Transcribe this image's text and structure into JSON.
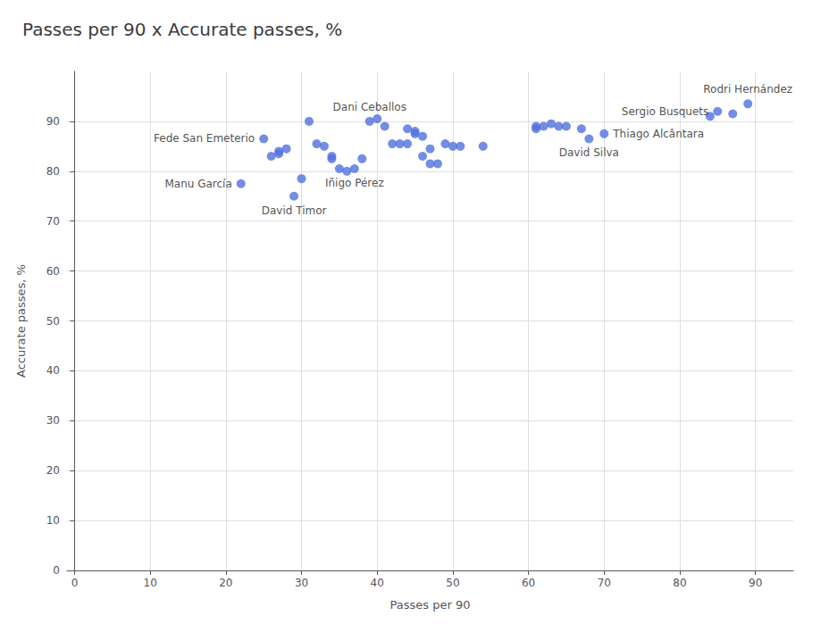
{
  "chart_data": {
    "type": "scatter",
    "title": "Passes per 90 x Accurate passes, %",
    "xlabel": "Passes per 90",
    "ylabel": "Accurate passes, %",
    "x": [
      22,
      25,
      26,
      27,
      27,
      28,
      29,
      30,
      31,
      32,
      33,
      34,
      34,
      35,
      36,
      37,
      38,
      39,
      40,
      41,
      42,
      43,
      44,
      44,
      45,
      45,
      46,
      46,
      47,
      47,
      48,
      49,
      50,
      51,
      54,
      61,
      61,
      62,
      63,
      64,
      65,
      67,
      68,
      70,
      84,
      85,
      87,
      89
    ],
    "values": [
      77.5,
      86.5,
      83,
      83.5,
      84,
      84.5,
      75,
      78.5,
      90,
      85.5,
      85,
      82.5,
      83,
      80.5,
      80,
      80.5,
      82.5,
      90,
      90.5,
      89,
      85.5,
      85.5,
      85.5,
      88.5,
      87.5,
      88,
      87,
      83,
      84.5,
      81.5,
      81.5,
      85.5,
      85,
      85,
      85,
      88.5,
      89,
      89,
      89.5,
      89,
      89,
      88.5,
      86.5,
      87.5,
      91,
      92,
      91.5,
      93.5
    ],
    "xlim": [
      -1,
      95
    ],
    "ylim": [
      0,
      100
    ],
    "xticks": [
      0,
      10,
      20,
      30,
      40,
      50,
      60,
      70,
      80,
      90
    ],
    "yticks": [
      0,
      10,
      20,
      30,
      40,
      50,
      60,
      70,
      80,
      90
    ],
    "grid": true,
    "annotations": [
      {
        "text": "Rodri Hernández",
        "x": 89,
        "y": 93.5
      },
      {
        "text": "Sergio Busquets",
        "x": 85,
        "y": 92
      },
      {
        "text": "Dani Ceballos",
        "x": 39,
        "y": 90
      },
      {
        "text": "Thiago Alcântara",
        "x": 70,
        "y": 87.5
      },
      {
        "text": "David Silva",
        "x": 68,
        "y": 86.5
      },
      {
        "text": "Fede San Emeterio",
        "x": 25,
        "y": 86.5
      },
      {
        "text": "Manu García",
        "x": 22,
        "y": 77.5
      },
      {
        "text": "Iñigo Pérez",
        "x": 37,
        "y": 80.5
      },
      {
        "text": "David Timor",
        "x": 29,
        "y": 75
      }
    ]
  }
}
